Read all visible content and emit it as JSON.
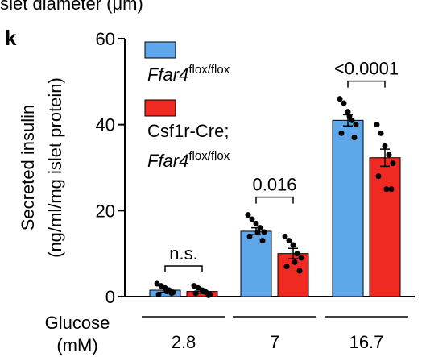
{
  "chart_data": {
    "type": "bar",
    "header": "Islet diameter (μm)",
    "panel": "k",
    "ylabel": [
      "Secreted insulin",
      "(ng/ml/mg islet protein)"
    ],
    "xlabel": [
      "Glucose",
      "(mM)"
    ],
    "categories": [
      "2.8",
      "7",
      "16.7"
    ],
    "ylim": [
      0,
      60
    ],
    "yticks": [
      0,
      20,
      40,
      60
    ],
    "series": [
      {
        "name": [
          "Ffar4",
          "flox/flox"
        ],
        "color": "#5ea7ea",
        "values": [
          1.5,
          15.2,
          41
        ],
        "errors": [
          0.5,
          0.8,
          1.3
        ],
        "points": [
          [
            3,
            2.5,
            2,
            1.5,
            1,
            0.5,
            0.8,
            1.2
          ],
          [
            19,
            18,
            17,
            16,
            15,
            14,
            13,
            15
          ],
          [
            46,
            45,
            43,
            41,
            40,
            38,
            37,
            42
          ]
        ]
      },
      {
        "name": [
          "Csf1r-Cre;",
          "Ffar4",
          "flox/flox"
        ],
        "color": "#ee2a22",
        "values": [
          1.2,
          10,
          32.3
        ],
        "errors": [
          0.4,
          1.2,
          2
        ],
        "points": [
          [
            2.5,
            2,
            1.5,
            1,
            0.5,
            0.8,
            0.3,
            1.2
          ],
          [
            14,
            13,
            12,
            10,
            9,
            7,
            6,
            8
          ],
          [
            40,
            38,
            35,
            33,
            31,
            28,
            25,
            25
          ]
        ]
      }
    ],
    "annotations": [
      "n.s.",
      "0.016",
      "<0.0001"
    ]
  }
}
